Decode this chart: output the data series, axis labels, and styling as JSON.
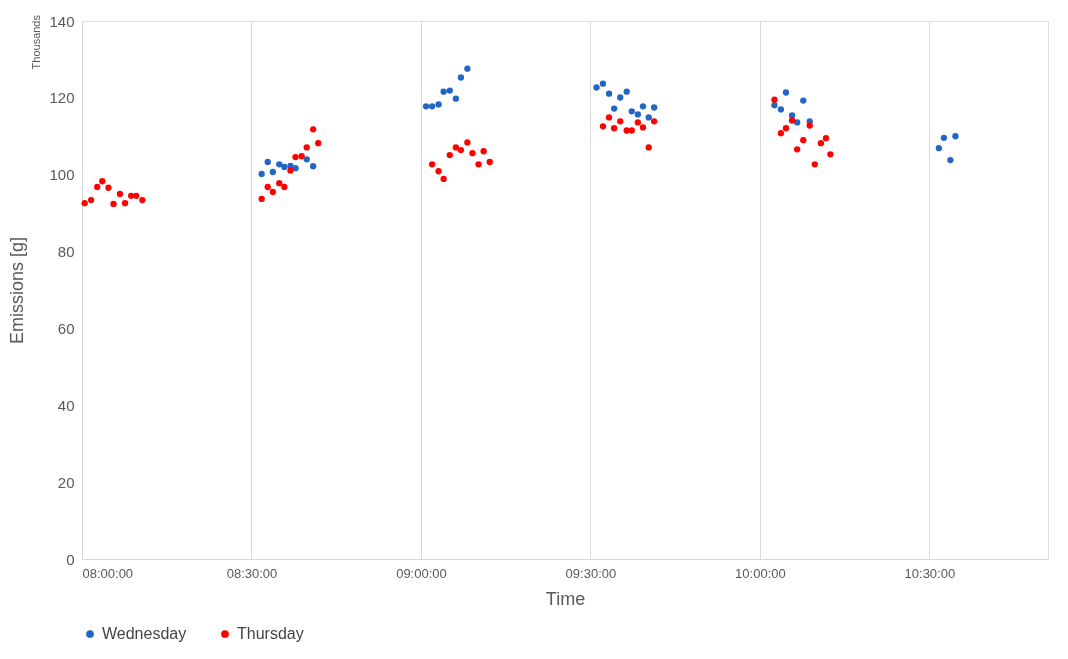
{
  "chart_data": {
    "type": "scatter",
    "xlabel": "Time",
    "ylabel": "Emissions [g]",
    "annotations": [
      "Thousands"
    ],
    "xlim": [
      8,
      10.85
    ],
    "xticks": [
      {
        "value": 8,
        "label": "08:00:00"
      },
      {
        "value": 8.5,
        "label": "08:30:00"
      },
      {
        "value": 9,
        "label": "09:00:00"
      },
      {
        "value": 9.5,
        "label": "09:30:00"
      },
      {
        "value": 10,
        "label": "10:00:00"
      },
      {
        "value": 10.5,
        "label": "10:30:00"
      }
    ],
    "ylim": [
      0,
      140
    ],
    "yticks": [
      0,
      20,
      40,
      60,
      80,
      100,
      120,
      140
    ],
    "grid": "x",
    "legend": "bottom",
    "marker": "circle",
    "series": [
      {
        "name": "Wednesday",
        "color": "#2266c4",
        "x": [
          8.53,
          8.548,
          8.563,
          8.582,
          8.597,
          8.615,
          8.63,
          8.663,
          8.682,
          9.015,
          9.033,
          9.052,
          9.067,
          9.085,
          9.103,
          9.118,
          9.137,
          9.518,
          9.537,
          9.555,
          9.57,
          9.588,
          9.607,
          9.622,
          9.64,
          9.655,
          9.672,
          9.688,
          10.043,
          10.062,
          10.077,
          10.095,
          10.11,
          10.128,
          10.147,
          10.528,
          10.543,
          10.562,
          10.577
        ],
        "values": [
          100.2,
          103.3,
          100.7,
          102.7,
          102.0,
          102.3,
          101.7,
          104.0,
          102.2,
          117.8,
          117.8,
          118.3,
          121.6,
          121.9,
          119.8,
          125.3,
          127.6,
          122.7,
          123.7,
          121.1,
          117.2,
          120.1,
          121.6,
          116.5,
          115.7,
          117.8,
          114.9,
          117.5,
          118.1,
          117.0,
          121.4,
          115.4,
          113.6,
          119.3,
          113.9,
          106.9,
          109.6,
          103.8,
          110.0
        ]
      },
      {
        "name": "Thursday",
        "color": "#ff0000",
        "x": [
          8.008,
          8.027,
          8.045,
          8.06,
          8.078,
          8.093,
          8.112,
          8.127,
          8.145,
          8.16,
          8.178,
          8.53,
          8.548,
          8.563,
          8.582,
          8.597,
          8.615,
          8.63,
          8.648,
          8.663,
          8.682,
          8.697,
          9.033,
          9.052,
          9.067,
          9.085,
          9.103,
          9.118,
          9.137,
          9.152,
          9.17,
          9.185,
          9.203,
          9.537,
          9.555,
          9.57,
          9.588,
          9.607,
          9.622,
          9.64,
          9.655,
          9.672,
          9.688,
          10.043,
          10.062,
          10.077,
          10.095,
          10.11,
          10.128,
          10.147,
          10.162,
          10.18,
          10.195,
          10.208
        ],
        "values": [
          92.6,
          93.4,
          96.8,
          98.3,
          96.6,
          92.4,
          95.0,
          92.6,
          94.5,
          94.5,
          93.4,
          93.7,
          96.8,
          95.5,
          97.8,
          96.8,
          101.1,
          104.6,
          104.8,
          107.1,
          111.8,
          108.2,
          102.7,
          100.9,
          98.9,
          105.1,
          107.1,
          106.4,
          108.4,
          105.6,
          102.7,
          106.1,
          103.3,
          112.6,
          114.9,
          112.1,
          113.9,
          111.5,
          111.5,
          113.6,
          112.3,
          107.1,
          113.9,
          119.5,
          110.8,
          112.1,
          114.1,
          106.6,
          109.0,
          112.8,
          102.7,
          108.2,
          109.5,
          105.3
        ]
      }
    ]
  }
}
